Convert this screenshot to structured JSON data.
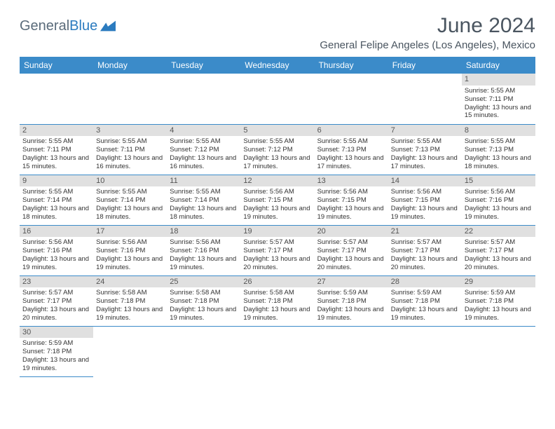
{
  "logo": {
    "text1": "General",
    "text2": "Blue"
  },
  "title": "June 2024",
  "location": "General Felipe Angeles (Los Angeles), Mexico",
  "colors": {
    "header_bg": "#3b8bc9",
    "header_text": "#ffffff",
    "border": "#3b8bc9",
    "daynum_bg": "#e0e0e0",
    "logo_gray": "#5a6b7a",
    "logo_blue": "#2b7bbf",
    "title_color": "#4a5560"
  },
  "weekdays": [
    "Sunday",
    "Monday",
    "Tuesday",
    "Wednesday",
    "Thursday",
    "Friday",
    "Saturday"
  ],
  "weeks": [
    [
      null,
      null,
      null,
      null,
      null,
      null,
      {
        "d": "1",
        "sr": "5:55 AM",
        "ss": "7:11 PM",
        "dl": "13 hours and 15 minutes."
      }
    ],
    [
      {
        "d": "2",
        "sr": "5:55 AM",
        "ss": "7:11 PM",
        "dl": "13 hours and 15 minutes."
      },
      {
        "d": "3",
        "sr": "5:55 AM",
        "ss": "7:11 PM",
        "dl": "13 hours and 16 minutes."
      },
      {
        "d": "4",
        "sr": "5:55 AM",
        "ss": "7:12 PM",
        "dl": "13 hours and 16 minutes."
      },
      {
        "d": "5",
        "sr": "5:55 AM",
        "ss": "7:12 PM",
        "dl": "13 hours and 17 minutes."
      },
      {
        "d": "6",
        "sr": "5:55 AM",
        "ss": "7:13 PM",
        "dl": "13 hours and 17 minutes."
      },
      {
        "d": "7",
        "sr": "5:55 AM",
        "ss": "7:13 PM",
        "dl": "13 hours and 17 minutes."
      },
      {
        "d": "8",
        "sr": "5:55 AM",
        "ss": "7:13 PM",
        "dl": "13 hours and 18 minutes."
      }
    ],
    [
      {
        "d": "9",
        "sr": "5:55 AM",
        "ss": "7:14 PM",
        "dl": "13 hours and 18 minutes."
      },
      {
        "d": "10",
        "sr": "5:55 AM",
        "ss": "7:14 PM",
        "dl": "13 hours and 18 minutes."
      },
      {
        "d": "11",
        "sr": "5:55 AM",
        "ss": "7:14 PM",
        "dl": "13 hours and 18 minutes."
      },
      {
        "d": "12",
        "sr": "5:56 AM",
        "ss": "7:15 PM",
        "dl": "13 hours and 19 minutes."
      },
      {
        "d": "13",
        "sr": "5:56 AM",
        "ss": "7:15 PM",
        "dl": "13 hours and 19 minutes."
      },
      {
        "d": "14",
        "sr": "5:56 AM",
        "ss": "7:15 PM",
        "dl": "13 hours and 19 minutes."
      },
      {
        "d": "15",
        "sr": "5:56 AM",
        "ss": "7:16 PM",
        "dl": "13 hours and 19 minutes."
      }
    ],
    [
      {
        "d": "16",
        "sr": "5:56 AM",
        "ss": "7:16 PM",
        "dl": "13 hours and 19 minutes."
      },
      {
        "d": "17",
        "sr": "5:56 AM",
        "ss": "7:16 PM",
        "dl": "13 hours and 19 minutes."
      },
      {
        "d": "18",
        "sr": "5:56 AM",
        "ss": "7:16 PM",
        "dl": "13 hours and 19 minutes."
      },
      {
        "d": "19",
        "sr": "5:57 AM",
        "ss": "7:17 PM",
        "dl": "13 hours and 20 minutes."
      },
      {
        "d": "20",
        "sr": "5:57 AM",
        "ss": "7:17 PM",
        "dl": "13 hours and 20 minutes."
      },
      {
        "d": "21",
        "sr": "5:57 AM",
        "ss": "7:17 PM",
        "dl": "13 hours and 20 minutes."
      },
      {
        "d": "22",
        "sr": "5:57 AM",
        "ss": "7:17 PM",
        "dl": "13 hours and 20 minutes."
      }
    ],
    [
      {
        "d": "23",
        "sr": "5:57 AM",
        "ss": "7:17 PM",
        "dl": "13 hours and 20 minutes."
      },
      {
        "d": "24",
        "sr": "5:58 AM",
        "ss": "7:18 PM",
        "dl": "13 hours and 19 minutes."
      },
      {
        "d": "25",
        "sr": "5:58 AM",
        "ss": "7:18 PM",
        "dl": "13 hours and 19 minutes."
      },
      {
        "d": "26",
        "sr": "5:58 AM",
        "ss": "7:18 PM",
        "dl": "13 hours and 19 minutes."
      },
      {
        "d": "27",
        "sr": "5:59 AM",
        "ss": "7:18 PM",
        "dl": "13 hours and 19 minutes."
      },
      {
        "d": "28",
        "sr": "5:59 AM",
        "ss": "7:18 PM",
        "dl": "13 hours and 19 minutes."
      },
      {
        "d": "29",
        "sr": "5:59 AM",
        "ss": "7:18 PM",
        "dl": "13 hours and 19 minutes."
      }
    ],
    [
      {
        "d": "30",
        "sr": "5:59 AM",
        "ss": "7:18 PM",
        "dl": "13 hours and 19 minutes."
      },
      null,
      null,
      null,
      null,
      null,
      null
    ]
  ],
  "labels": {
    "sunrise": "Sunrise: ",
    "sunset": "Sunset: ",
    "daylight": "Daylight: "
  }
}
